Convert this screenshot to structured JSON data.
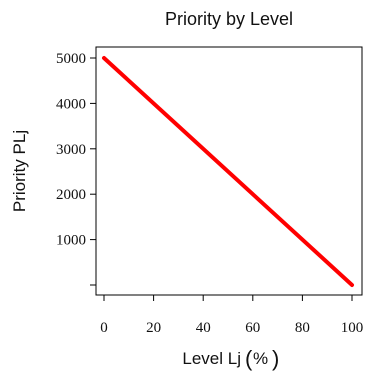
{
  "chart_data": {
    "type": "line",
    "title": "Priority by Level",
    "xlabel": "Level Lj (%)",
    "xlabel_main": "Level Lj",
    "xlabel_unit": "%",
    "ylabel": "Priority PLj",
    "xlim": [
      0,
      100
    ],
    "ylim": [
      0,
      5000
    ],
    "x_ticks": [
      0,
      20,
      40,
      60,
      80,
      100
    ],
    "y_ticks": [
      1000,
      2000,
      3000,
      4000,
      5000
    ],
    "y_extra_ticks": [
      0
    ],
    "grid": false,
    "legend": "none",
    "series": [
      {
        "color": "#ff0000",
        "x": [
          0,
          100
        ],
        "values": [
          5000,
          0
        ]
      }
    ]
  }
}
